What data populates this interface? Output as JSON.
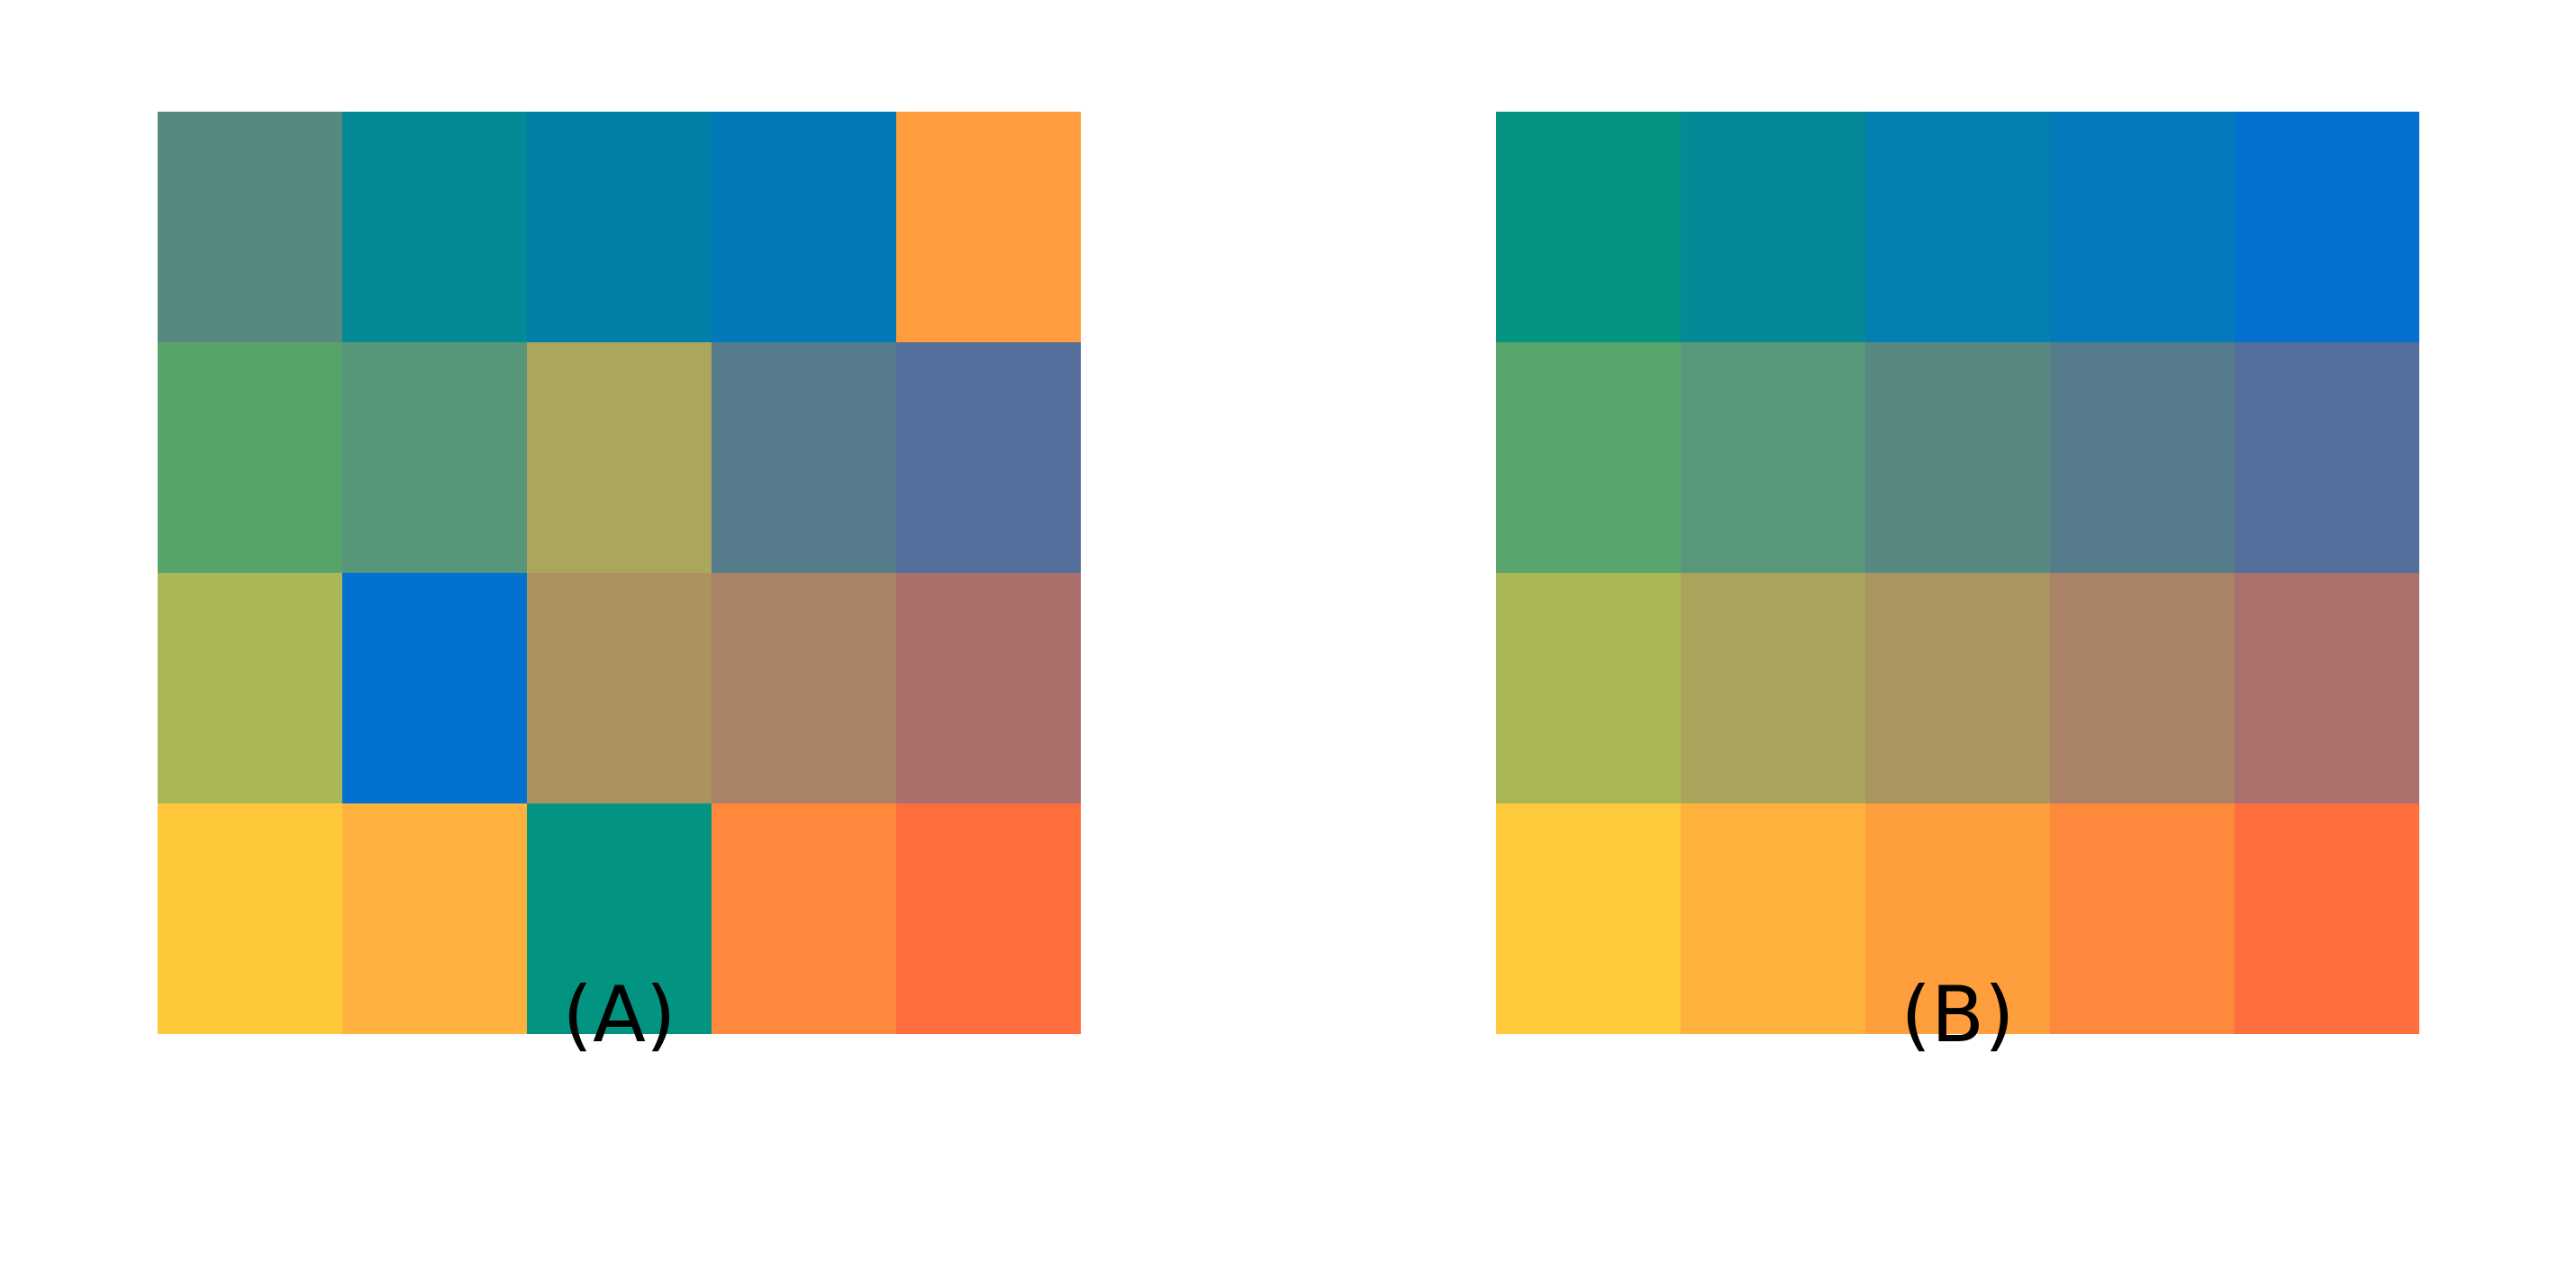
{
  "panels": [
    {
      "label": "(A)",
      "colors": [
        [
          "#568a80",
          "#048a94",
          "#0380a8",
          "#0479ba",
          "#ff9c3d"
        ],
        [
          "#57a46b",
          "#58967a",
          "#aaa65c",
          "#567b8b",
          "#546f9b"
        ],
        [
          "#abb756",
          "#0371cf",
          "#aa935e",
          "#aa8367",
          "#aa6f6b"
        ],
        [
          "#ffc83b",
          "#ffb23d",
          "#039381",
          "#ff883c",
          "#ff6d3c"
        ]
      ]
    },
    {
      "label": "(B)",
      "colors": [
        [
          "#049380",
          "#058996",
          "#047fb0",
          "#0479bb",
          "#0470cf"
        ],
        [
          "#58a56d",
          "#58977a",
          "#578982",
          "#567c8c",
          "#556f9c"
        ],
        [
          "#abb656",
          "#aba45c",
          "#aa945f",
          "#aa8367",
          "#aa706b"
        ],
        [
          "#fec93b",
          "#feb23c",
          "#fe9e3c",
          "#fe883c",
          "#ff6e3d"
        ]
      ]
    }
  ]
}
